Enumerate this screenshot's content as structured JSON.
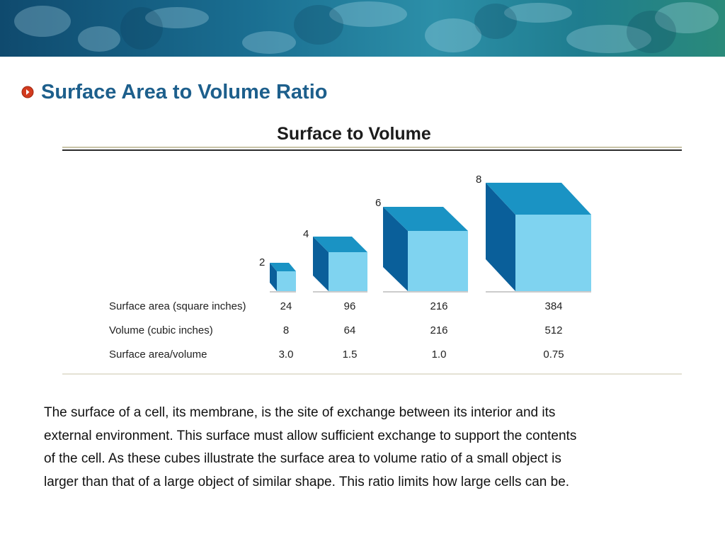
{
  "slide": {
    "title": "Surface Area to Volume Ratio",
    "colors": {
      "title": "#1d5f8c",
      "bullet": "#d23a1e",
      "banner": "#1b6f92"
    }
  },
  "figure": {
    "title": "Surface to Volume",
    "cubes": [
      {
        "side": "2"
      },
      {
        "side": "4"
      },
      {
        "side": "6"
      },
      {
        "side": "8"
      }
    ],
    "rows": [
      {
        "label": "Surface area (square inches)",
        "values": [
          "24",
          "96",
          "216",
          "384"
        ]
      },
      {
        "label": "Volume (cubic inches)",
        "values": [
          "8",
          "64",
          "216",
          "512"
        ]
      },
      {
        "label": "Surface area/volume",
        "values": [
          "3.0",
          "1.5",
          "1.0",
          "0.75"
        ]
      }
    ],
    "colors": {
      "front": "#7fd3f0",
      "top": "#1a93c4",
      "side": "#0a5f9a"
    }
  },
  "body": {
    "lines": [
      "The surface of a cell, its membrane, is the site of exchange between its interior and its",
      "external environment. This surface must allow sufficient exchange to support the contents",
      "of the cell. As these cubes illustrate the surface area to volume ratio of a small object is",
      "larger than that of a large object of similar shape. This ratio limits how large cells can be."
    ]
  }
}
